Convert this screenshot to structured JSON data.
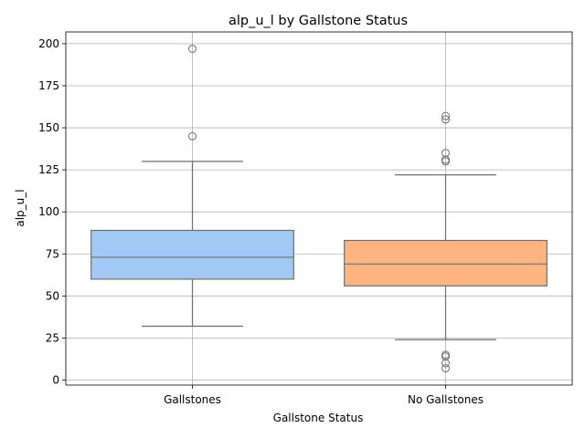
{
  "chart_data": {
    "type": "box",
    "title": "alp_u_l by Gallstone Status",
    "xlabel": "Gallstone Status",
    "ylabel": "alp_u_l",
    "categories": [
      "Gallstones",
      "No Gallstones"
    ],
    "ylim": [
      -3,
      207
    ],
    "yticks": [
      0,
      25,
      50,
      75,
      100,
      125,
      150,
      175,
      200
    ],
    "grid": true,
    "boxes": [
      {
        "category": "Gallstones",
        "whisker_low": 32,
        "q1": 60,
        "median": 73,
        "q3": 89,
        "whisker_high": 130,
        "fliers": [
          145,
          197
        ],
        "color": "#a1c9f4"
      },
      {
        "category": "No Gallstones",
        "whisker_low": 24,
        "q1": 56,
        "median": 69,
        "q3": 83,
        "whisker_high": 122,
        "fliers": [
          7,
          10,
          14,
          15,
          130,
          131,
          135,
          155,
          157
        ],
        "color": "#ffb482"
      }
    ]
  }
}
